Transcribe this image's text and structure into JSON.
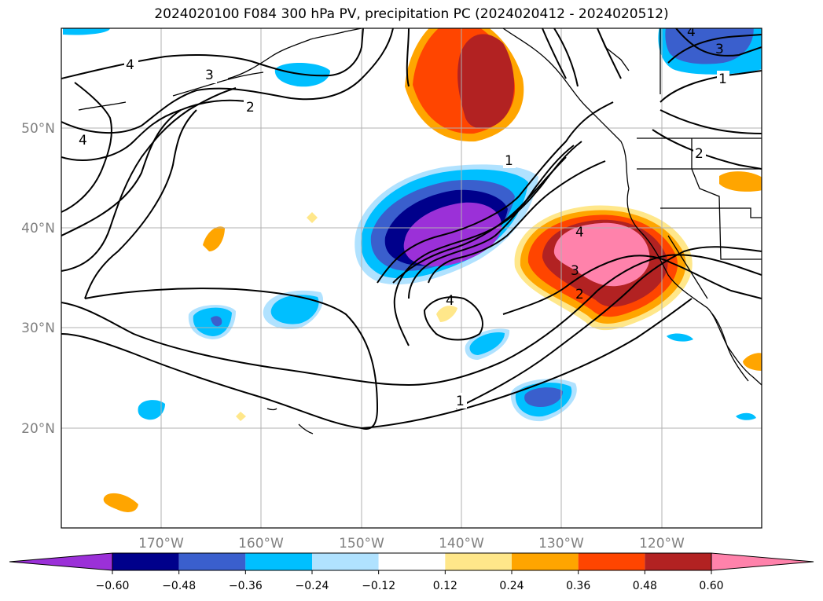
{
  "title": "2024020100 F084 300 hPa PV, precipitation PC (2024020412 - 2024020512)",
  "x_ticks": [
    "170°W",
    "160°W",
    "150°W",
    "140°W",
    "130°W",
    "120°W"
  ],
  "y_ticks": [
    "50°N",
    "40°N",
    "30°N",
    "20°N"
  ],
  "contour_labels": [
    "4",
    "3",
    "2",
    "4",
    "1",
    "2",
    "4",
    "3",
    "2",
    "1",
    "4",
    "3",
    "1",
    "4"
  ],
  "colorbar": {
    "colors": [
      "#9b30d8",
      "#00008b",
      "#3a5fcd",
      "#00bfff",
      "#b0e2ff",
      "#ffffff",
      "#ffe78a",
      "#ffa500",
      "#ff4500",
      "#b22222",
      "#ff82ab"
    ],
    "tick_labels": [
      "−0.60",
      "−0.48",
      "−0.36",
      "−0.24",
      "−0.12",
      "0.12",
      "0.24",
      "0.36",
      "0.48",
      "0.60"
    ]
  }
}
